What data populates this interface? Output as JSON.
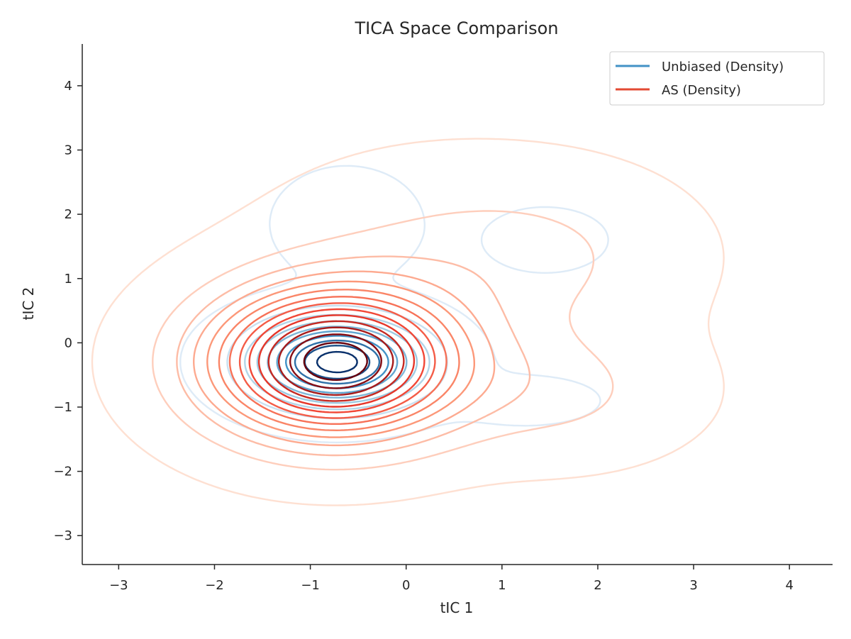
{
  "chart_data": {
    "type": "contour",
    "title": "TICA Space Comparison",
    "xlabel": "tIC 1",
    "ylabel": "tIC 2",
    "xlim": [
      -3.38,
      4.45
    ],
    "ylim": [
      -3.45,
      4.65
    ],
    "xticks": [
      -3,
      -2,
      -1,
      0,
      1,
      2,
      3,
      4
    ],
    "yticks": [
      -3,
      -2,
      -1,
      0,
      1,
      2,
      3,
      4
    ],
    "xtick_labels": [
      "−3",
      "−2",
      "−1",
      "0",
      "1",
      "2",
      "3",
      "4"
    ],
    "ytick_labels": [
      "−3",
      "−2",
      "−1",
      "0",
      "1",
      "2",
      "3",
      "4"
    ],
    "grid": false,
    "legend_position": "top-right",
    "series": [
      {
        "name": "Unbiased (Density)",
        "kind": "kde-contour",
        "legend_color": "#4292c6",
        "colormap": "Blues",
        "levels": 10,
        "modes": [
          {
            "x": -0.72,
            "y": -0.3,
            "sx": 0.55,
            "sy": 0.42,
            "w": 1.0
          },
          {
            "x": -0.62,
            "y": 1.85,
            "sx": 0.4,
            "sy": 0.45,
            "w": 0.09
          },
          {
            "x": 1.45,
            "y": 1.6,
            "sx": 0.45,
            "sy": 0.35,
            "w": 0.035
          },
          {
            "x": 1.25,
            "y": -0.9,
            "sx": 0.5,
            "sy": 0.25,
            "w": 0.04
          }
        ]
      },
      {
        "name": "AS (Density)",
        "kind": "kde-contour",
        "legend_color": "#e34a33",
        "colormap": "Reds",
        "levels": 14,
        "modes": [
          {
            "x": -0.75,
            "y": -0.3,
            "sx": 0.85,
            "sy": 0.75,
            "w": 1.0
          },
          {
            "x": 0.45,
            "y": 1.3,
            "sx": 1.1,
            "sy": 0.9,
            "w": 0.09
          },
          {
            "x": 1.55,
            "y": -0.75,
            "sx": 0.85,
            "sy": 0.65,
            "w": 0.1
          },
          {
            "x": 1.65,
            "y": 1.35,
            "sx": 0.9,
            "sy": 0.8,
            "w": 0.05
          }
        ]
      }
    ]
  }
}
